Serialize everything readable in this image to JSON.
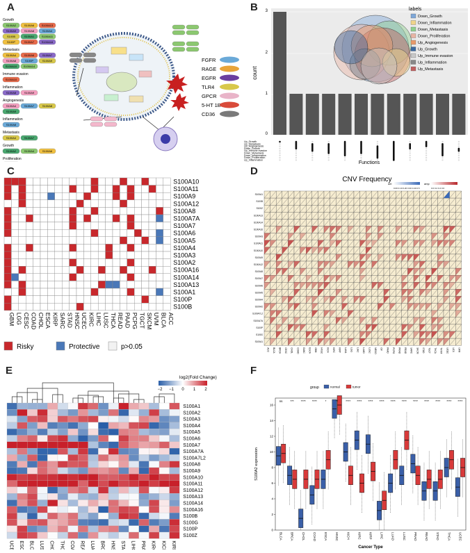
{
  "figure": {
    "labels": [
      "A",
      "B",
      "C",
      "D",
      "E",
      "F"
    ]
  },
  "panelA": {
    "groups": [
      {
        "title": "Growth",
        "items": [
          "S100A2",
          "S100A6",
          "S100A13",
          "S100A9",
          "S100A8",
          "S100A4",
          "S100B",
          "S100A1",
          "S100A11",
          "S100P",
          "S100A7",
          "S100A16"
        ]
      },
      {
        "title": "Metastasis",
        "items": [
          "S100A4",
          "S100A6",
          "S100A7",
          "S100A8",
          "S100P",
          "S100A9",
          "S100A10",
          "S100A14"
        ]
      },
      {
        "title": "Immune evasion",
        "items": [
          "S100A10"
        ]
      },
      {
        "title": "Inflammation",
        "items": [
          "S100A8",
          "S100A9"
        ]
      },
      {
        "title": "Angiogenesis",
        "items": [
          "S100A4",
          "S100A7",
          "S100A8",
          "S100A9"
        ]
      },
      {
        "title": "Inflammation",
        "items": [
          "S100A8"
        ]
      },
      {
        "title": "Metastasis",
        "items": [
          "S100A4",
          "S100A7"
        ]
      },
      {
        "title": "Growth",
        "items": [
          "S100A2",
          "S100A4",
          "S100A6"
        ]
      },
      {
        "title": "Proliferation",
        "items": [
          "S100A7"
        ]
      }
    ],
    "receptors": [
      {
        "name": "FGFR",
        "color": "#6aa9d8"
      },
      {
        "name": "RAGE",
        "color": "#e8a43a"
      },
      {
        "name": "EGFR",
        "color": "#6b3fa0"
      },
      {
        "name": "TLR4",
        "color": "#d8c84a"
      },
      {
        "name": "GPCR",
        "color": "#e9b4c8"
      },
      {
        "name": "5-HT 1B",
        "color": "#d94b3a"
      },
      {
        "name": "CD36",
        "color": "#7a7a7a"
      }
    ]
  },
  "panelB": {
    "legend_title": "labels",
    "legend": [
      {
        "name": "Down_Growth",
        "color": "#7ea7d8"
      },
      {
        "name": "Down_Inflammation",
        "color": "#f0d48a"
      },
      {
        "name": "Down_Metastasis",
        "color": "#8ecf8e"
      },
      {
        "name": "Down_Proliferation",
        "color": "#e8b4a4"
      },
      {
        "name": "Up_Angiogenesis",
        "color": "#e89a6a"
      },
      {
        "name": "Up_Growth",
        "color": "#3b6aa0"
      },
      {
        "name": "Up_Immune evasion",
        "color": "#c8c8c8"
      },
      {
        "name": "Up_Inflammation",
        "color": "#888888"
      },
      {
        "name": "Up_Metastasis",
        "color": "#c06060"
      }
    ],
    "row_labels": [
      "Up_Growth",
      "Up_Metastasis",
      "Up_Angiogenesis",
      "Down_Growth",
      "Up_Immune evasion",
      "Down_Metastasis",
      "Down_Inflammation",
      "Down_Proliferation",
      "Up_Inflammation"
    ],
    "xlabel": "Functions",
    "ylabel": "count"
  },
  "panelC": {
    "genes": [
      "S100A10",
      "S100A11",
      "S100A9",
      "S100A12",
      "S100A8",
      "S100A7A",
      "S100A7",
      "S100A6",
      "S100A5",
      "S100A4",
      "S100A3",
      "S100A2",
      "S100A16",
      "S100A14",
      "S100A13",
      "S100A1",
      "S100P",
      "S100B"
    ],
    "cancers": [
      "GBM",
      "LGG",
      "CESC",
      "COAD",
      "CHOL",
      "ESCA",
      "KIRP",
      "SARC",
      "STAD",
      "HNSC",
      "UCEC",
      "KIRC",
      "LIHC",
      "LUSC",
      "THCA",
      "READ",
      "PAAD",
      "PCPG",
      "TGCT",
      "SKCM",
      "UVM",
      "BLCA",
      "ACC"
    ],
    "legend": [
      {
        "label": "Risky",
        "color": "#c8282c"
      },
      {
        "label": "Protective",
        "color": "#4a78b8"
      },
      {
        "label": "p>0.05",
        "color": "#f2f2f2"
      }
    ]
  },
  "panelD": {
    "title": "CNV Frequency",
    "legend_del": "del",
    "legend_amp": "amp",
    "del_ticks": "0.00 0.10 0.20 0.30 0.40 0.5",
    "amp_ticks": "0.0 0.2 0.4 0.6"
  },
  "panelE": {
    "legend_title": "log2(Fold Change)",
    "legend_ticks": [
      "−2",
      "−1",
      "0",
      "1",
      "2"
    ],
    "genes": [
      "S100A1",
      "S100A2",
      "S100A3",
      "S100A4",
      "S100A5",
      "S100A6",
      "S100A7",
      "S100A7A",
      "S100A7L2",
      "S100A8",
      "S100A9",
      "S100A10",
      "S100A11",
      "S100A12",
      "S100A13",
      "S100A14",
      "S100A16",
      "S100B",
      "S100G",
      "S100P",
      "S100Z"
    ],
    "cancers": [
      "UCEC",
      "ESCA",
      "BLCA",
      "LUSC",
      "CHOL",
      "THCA",
      "COAD",
      "READ",
      "LUAD",
      "BRCA",
      "HNSC",
      "STAD",
      "LIHC",
      "PRAD",
      "KIRC",
      "KICH",
      "KIRP"
    ]
  },
  "panelF": {
    "legend_title": "group",
    "legend": [
      {
        "name": "normal",
        "color": "#3a5fa8"
      },
      {
        "name": "tumor",
        "color": "#d83a3a"
      }
    ],
    "ylabel": "S100A2 expression",
    "xlabel": "Cancer Type",
    "yticks": [
      "0",
      "2",
      "4",
      "6",
      "8",
      "10",
      "12",
      "14",
      "16"
    ],
    "sig": [
      "ns",
      "***",
      "****",
      "****",
      "*",
      "**",
      "****",
      "****",
      "****",
      "****",
      "****",
      "****",
      "****",
      "****",
      "****",
      "****",
      "****"
    ],
    "chart_data": {
      "type": "box",
      "categories": [
        "BLCA",
        "BRCA",
        "CHOL",
        "COAD",
        "ESCA",
        "HNSC",
        "KICH",
        "KIRC",
        "KIRP",
        "LIHC",
        "LUAD",
        "LUSC",
        "PRAD",
        "READ",
        "STAD",
        "THCA",
        "UCEC"
      ],
      "series": [
        {
          "name": "normal",
          "medians": [
            9.5,
            7.0,
            1.5,
            4.5,
            6.5,
            15.5,
            10.0,
            11.5,
            11.0,
            2.5,
            6.0,
            7.0,
            8.5,
            5.0,
            5.0,
            8.0,
            5.5
          ]
        },
        {
          "name": "tumor",
          "medians": [
            9.8,
            6.5,
            6.5,
            6.5,
            9.0,
            16.0,
            7.0,
            6.0,
            7.5,
            3.8,
            9.0,
            11.5,
            7.0,
            6.5,
            6.5,
            9.0,
            8.0
          ]
        }
      ],
      "ylim": [
        0,
        16
      ]
    }
  }
}
